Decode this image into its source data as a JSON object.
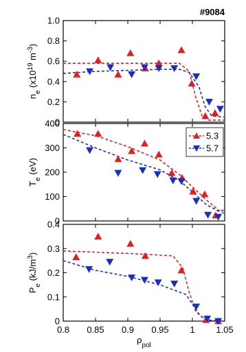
{
  "chart_data": [
    {
      "type": "scatter",
      "annotation": "#9084",
      "ylabel": [
        {
          "text": "n"
        },
        {
          "text": "e",
          "shift": "sub"
        },
        {
          "text": " (x10"
        },
        {
          "text": "19",
          "shift": "sup"
        },
        {
          "text": " m"
        },
        {
          "text": "-3",
          "shift": "sup"
        },
        {
          "text": ")"
        }
      ],
      "xlim": [
        0.8,
        1.05
      ],
      "ylim": [
        0,
        1
      ],
      "yticks": [
        0,
        0.2,
        0.4,
        0.6,
        0.8,
        {
          "value": 1,
          "label": "1.0"
        }
      ],
      "series": [
        {
          "color": "#e02020",
          "marker": "up",
          "x": [
            0.821,
            0.854,
            0.885,
            0.904,
            0.927,
            0.948,
            0.983,
            0.999,
            1.02,
            1.035
          ],
          "values": [
            0.47,
            0.61,
            0.47,
            0.68,
            0.53,
            0.58,
            0.71,
            0.38,
            0.06,
            0.09
          ]
        },
        {
          "color": "#1a2fc0",
          "marker": "down",
          "x": [
            0.841,
            0.873,
            0.906,
            0.926,
            0.948,
            0.972,
            1.006,
            1.026,
            1.043
          ],
          "values": [
            0.5,
            0.54,
            0.47,
            0.54,
            0.53,
            0.53,
            0.45,
            0.2,
            0.13
          ]
        }
      ],
      "fits": [
        {
          "color": "#e02020",
          "x": [
            0.8,
            0.9,
            0.98,
            0.995,
            1.005,
            1.015,
            1.025,
            1.05
          ],
          "values": [
            0.58,
            0.58,
            0.58,
            0.5,
            0.25,
            0.06,
            0.02,
            0.02
          ]
        },
        {
          "color": "#1a2fc0",
          "x": [
            0.8,
            0.85,
            0.9,
            0.95,
            0.98,
            0.995,
            1.01,
            1.02,
            1.03,
            1.05
          ],
          "values": [
            0.48,
            0.5,
            0.51,
            0.52,
            0.52,
            0.49,
            0.35,
            0.15,
            0.06,
            0.05
          ]
        }
      ]
    },
    {
      "type": "scatter",
      "legend": "upper right",
      "ylabel": [
        {
          "text": "T"
        },
        {
          "text": "e",
          "shift": "sub"
        },
        {
          "text": " (eV)"
        }
      ],
      "xlim": [
        0.8,
        1.05
      ],
      "ylim": [
        0,
        400
      ],
      "yticks": [
        0,
        100,
        200,
        300,
        400
      ],
      "series": [
        {
          "name": "5.3",
          "color": "#e02020",
          "marker": "up",
          "x": [
            0.822,
            0.854,
            0.885,
            0.906,
            0.926,
            0.948,
            0.968,
            0.984,
            1.001,
            1.019,
            1.036
          ],
          "values": [
            358,
            358,
            254,
            287,
            318,
            273,
            197,
            177,
            121,
            110,
            23
          ]
        },
        {
          "name": "5.7",
          "color": "#1a2fc0",
          "marker": "down",
          "x": [
            0.841,
            0.885,
            0.923,
            0.946,
            0.97,
            0.983,
            1.006,
            1.024,
            1.04
          ],
          "values": [
            290,
            197,
            208,
            192,
            166,
            163,
            82,
            25,
            17
          ]
        }
      ],
      "fits": [
        {
          "color": "#e02020",
          "x": [
            0.8,
            0.85,
            0.9,
            0.95,
            0.98,
            1.0,
            1.02,
            1.04,
            1.05
          ],
          "values": [
            375,
            350,
            305,
            250,
            190,
            140,
            90,
            45,
            30
          ]
        },
        {
          "color": "#1a2fc0",
          "x": [
            0.8,
            0.85,
            0.9,
            0.95,
            0.98,
            1.0,
            1.02,
            1.04,
            1.05
          ],
          "values": [
            355,
            300,
            250,
            210,
            165,
            120,
            70,
            40,
            45
          ]
        }
      ]
    },
    {
      "type": "scatter",
      "ylabel": [
        {
          "text": "P"
        },
        {
          "text": "e",
          "shift": "sub"
        },
        {
          "text": " (kJ/m"
        },
        {
          "text": "3",
          "shift": "sup"
        },
        {
          "text": ")"
        }
      ],
      "xlabel": [
        {
          "text": "ρ"
        },
        {
          "text": "pol",
          "shift": "sub"
        }
      ],
      "xlim": [
        0.8,
        1.05
      ],
      "xticks": [
        0.8,
        0.85,
        0.9,
        0.95,
        1,
        1.05
      ],
      "ylim": [
        0,
        0.4
      ],
      "yticks": [
        0,
        0.1,
        0.2,
        0.3,
        0.4
      ],
      "series": [
        {
          "color": "#e02020",
          "marker": "up",
          "x": [
            0.82,
            0.854,
            0.904,
            0.927,
            0.983,
            1.021,
            1.04
          ],
          "values": [
            0.265,
            0.35,
            0.32,
            0.27,
            0.21,
            0.005,
            0
          ]
        },
        {
          "color": "#1a2fc0",
          "marker": "down",
          "x": [
            0.84,
            0.872,
            0.906,
            0.926,
            0.947,
            0.972,
            1.006,
            1.023,
            1.04
          ],
          "values": [
            0.215,
            0.245,
            0.18,
            0.17,
            0.16,
            0.155,
            0.06,
            0.01,
            0
          ]
        }
      ],
      "fits": [
        {
          "color": "#e02020",
          "x": [
            0.8,
            0.9,
            0.97,
            0.985,
            0.995,
            1.005,
            1.02,
            1.05
          ],
          "values": [
            0.29,
            0.28,
            0.27,
            0.22,
            0.12,
            0.04,
            0.005,
            0
          ]
        },
        {
          "color": "#1a2fc0",
          "x": [
            0.8,
            0.85,
            0.9,
            0.95,
            0.99,
            1.0,
            1.01,
            1.02,
            1.05
          ],
          "values": [
            0.25,
            0.21,
            0.185,
            0.15,
            0.11,
            0.07,
            0.03,
            0.005,
            0
          ]
        }
      ]
    }
  ]
}
